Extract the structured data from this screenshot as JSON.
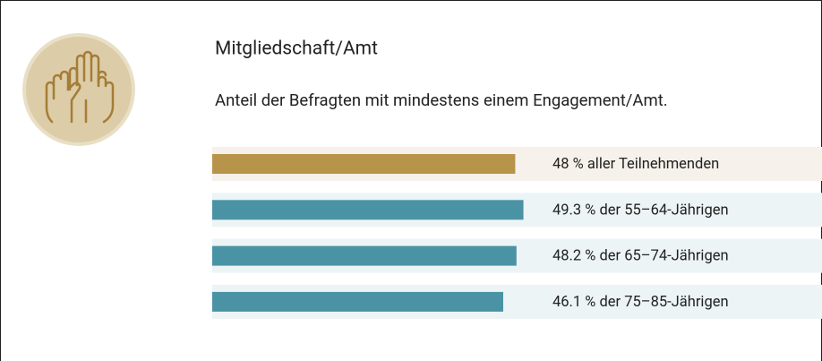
{
  "chart_data": {
    "type": "bar",
    "orientation": "horizontal",
    "title": "Mitgliedschaft/Amt",
    "subtitle": "Anteil der Befragten mit mindestens einem Engagement/Amt.",
    "categories": [
      "aller Teilnehmenden",
      "der 55–64-Jährigen",
      "der 65–74-Jährigen",
      "der 75–85-Jährigen"
    ],
    "values": [
      48,
      49.3,
      48.2,
      46.1
    ],
    "value_labels": [
      "48 %",
      "49.3 %",
      "48.2 %",
      "46.1 %"
    ],
    "colors": [
      "#b8944a",
      "#4a93a5",
      "#4a93a5",
      "#4a93a5"
    ]
  }
}
